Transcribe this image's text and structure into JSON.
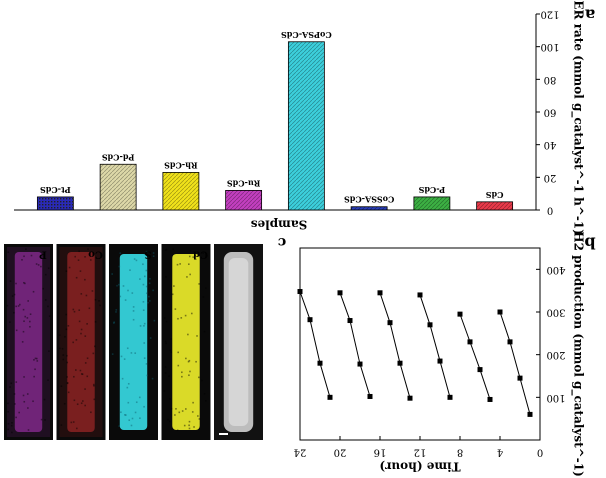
{
  "panel_labels": {
    "a": "a",
    "b": "b",
    "c": "c"
  },
  "chart_data": [
    {
      "type": "bar",
      "panel": "a",
      "title": "",
      "xlabel": "Samples",
      "ylabel": "HER rate (mmol g_catalyst^-1 h^-1)",
      "ylim": [
        0,
        120
      ],
      "yticks": [
        0,
        20,
        40,
        60,
        80,
        100,
        120
      ],
      "categories": [
        "CdS",
        "P-CdS",
        "CoSSA-CdS",
        "CoPSA-CdS",
        "Ru-CdS",
        "Rh-CdS",
        "Pd-CdS",
        "Pt-CdS"
      ],
      "values": [
        5,
        8,
        2,
        103,
        12,
        23,
        28,
        8
      ],
      "colors": [
        "#e83a4a",
        "#3cb043",
        "#2a3fb8",
        "#3ccfdc",
        "#c23fbf",
        "#f0e21a",
        "#ddd8a8",
        "#2a2ab8"
      ],
      "grid": false,
      "orientation_note": "figure is displayed mirrored/rotated 180 degrees"
    },
    {
      "type": "line",
      "panel": "b",
      "title": "",
      "xlabel": "Time (hour)",
      "ylabel": "H2 production (mmol g_catalyst^-1)",
      "xlim": [
        0,
        24
      ],
      "ylim": [
        0,
        450
      ],
      "xticks": [
        0,
        4,
        8,
        12,
        16,
        20,
        24
      ],
      "yticks": [
        100,
        200,
        300,
        400
      ],
      "series": [
        {
          "x": [
            0,
            1,
            2,
            3,
            4
          ],
          "y": [
            0,
            60,
            145,
            230,
            300
          ]
        },
        {
          "x": [
            4,
            5,
            6,
            7,
            8
          ],
          "y": [
            0,
            95,
            165,
            230,
            295
          ]
        },
        {
          "x": [
            8,
            9,
            10,
            11,
            12
          ],
          "y": [
            0,
            100,
            185,
            270,
            340
          ]
        },
        {
          "x": [
            12,
            13,
            14,
            15,
            16
          ],
          "y": [
            0,
            98,
            180,
            275,
            345
          ]
        },
        {
          "x": [
            16,
            17,
            18,
            19,
            20
          ],
          "y": [
            0,
            102,
            178,
            280,
            345
          ]
        },
        {
          "x": [
            20,
            21,
            22,
            23,
            24
          ],
          "y": [
            0,
            100,
            180,
            282,
            348
          ]
        }
      ],
      "marker": "square",
      "color": "#000000",
      "grid": false
    }
  ],
  "micrographs": {
    "panel": "c",
    "maps": [
      {
        "label": "P",
        "color": "#c13ad0"
      },
      {
        "label": "Co",
        "color": "#d23030"
      },
      {
        "label": "S",
        "color": "#36d3dc"
      },
      {
        "label": "Cd",
        "color": "#e6e62a"
      },
      {
        "label": "",
        "color": "#c8c8c8"
      }
    ]
  }
}
